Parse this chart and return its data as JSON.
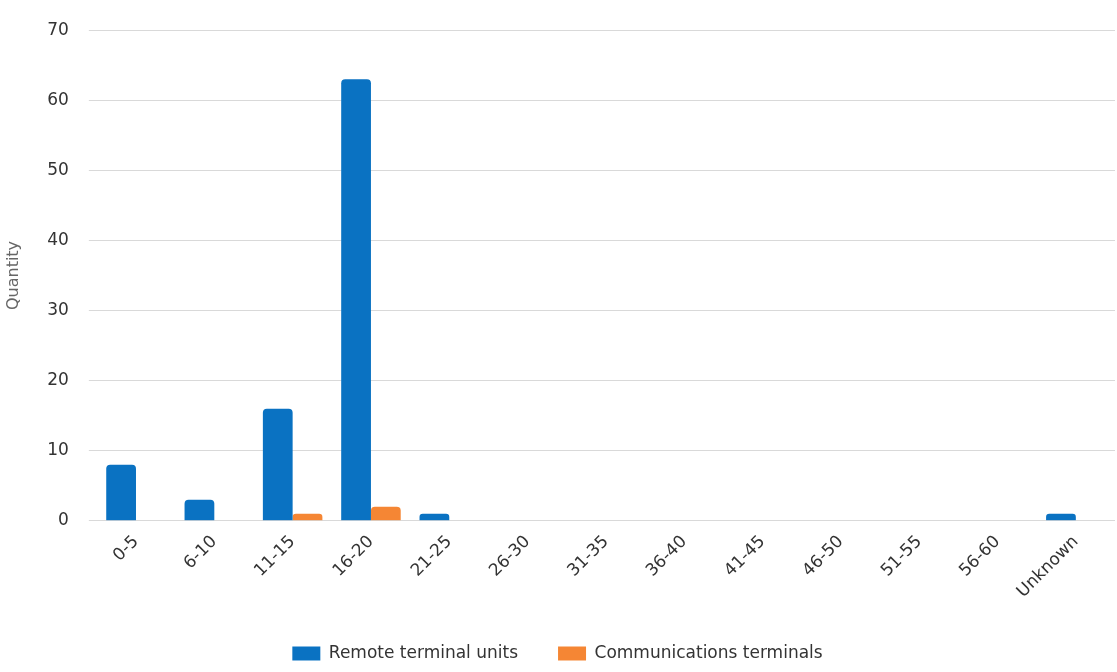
{
  "chart_data": {
    "type": "bar",
    "ylabel": "Quantity",
    "categories": [
      "0-5",
      "6-10",
      "11-15",
      "16-20",
      "21-25",
      "26-30",
      "31-35",
      "36-40",
      "41-45",
      "46-50",
      "51-55",
      "56-60",
      "Unknown"
    ],
    "series": [
      {
        "name": "Remote terminal units",
        "color": "#0a72c2",
        "values": [
          8,
          3,
          16,
          63,
          1,
          0,
          0,
          0,
          0,
          0,
          0,
          0,
          1
        ]
      },
      {
        "name": "Communications terminals",
        "color": "#f58634",
        "values": [
          0,
          0,
          1,
          2,
          0,
          0,
          0,
          0,
          0,
          0,
          0,
          0,
          0
        ]
      }
    ],
    "ylim": [
      0,
      70
    ],
    "yticks": [
      0,
      10,
      20,
      30,
      40,
      50,
      60,
      70
    ],
    "grid": "y",
    "legend": "bottom"
  }
}
